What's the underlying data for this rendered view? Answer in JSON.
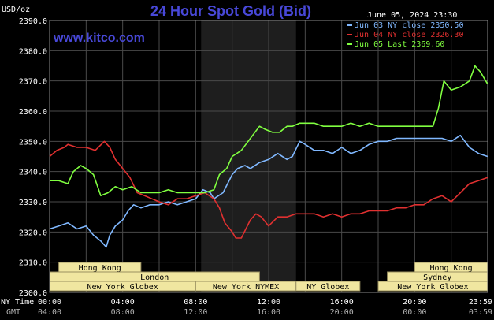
{
  "header": {
    "units": "USD/oz",
    "title": "24 Hour Spot Gold (Bid)",
    "datetime": "June 05, 2024 23:30",
    "url": "www.kitco.com"
  },
  "colors": {
    "background": "#000000",
    "grid": "#4a4a4a",
    "title": "#4848d8",
    "url": "#4848d8",
    "nymex_shade": "#1e1e1e",
    "session_fill": "#f0e6a0",
    "session_stroke": "#9a9060",
    "axis_text": "#ffffff",
    "gmt_text": "#b0b0b0"
  },
  "legend": [
    {
      "label": "Jun 03 NY close 2350.50",
      "color": "#80b8ff"
    },
    {
      "label": "Jun 04 NY close 2326.30",
      "color": "#e03030"
    },
    {
      "label": "Jun 05 Last 2369.60",
      "color": "#80ff40"
    }
  ],
  "bottom_axis": {
    "ny_label": "NY Time",
    "gmt_label": "GMT",
    "ny_ticks": [
      "00:00",
      "04:00",
      "08:00",
      "12:00",
      "16:00",
      "20:00",
      "23:59"
    ],
    "gmt_ticks": [
      "04:00",
      "08:00",
      "12:00",
      "16:00",
      "20:00",
      "00:00",
      "03:59"
    ]
  },
  "sessions": [
    {
      "label": "Hong Kong",
      "row": 0,
      "start": 0.5,
      "end": 5.0
    },
    {
      "label": "Hong Kong",
      "row": 0,
      "start": 20.0,
      "end": 23.99
    },
    {
      "label": "London",
      "row": 1,
      "start": 0.0,
      "end": 11.5
    },
    {
      "label": "Sydney",
      "row": 1,
      "start": 18.5,
      "end": 23.99
    },
    {
      "label": "New York Globex",
      "row": 2,
      "start": 0.0,
      "end": 8.0
    },
    {
      "label": "New York NYMEX",
      "row": 2,
      "start": 8.0,
      "end": 13.5
    },
    {
      "label": "NY Globex",
      "row": 2,
      "start": 13.5,
      "end": 17.0
    },
    {
      "label": "New York Globex",
      "row": 2,
      "start": 18.0,
      "end": 23.99
    }
  ],
  "chart_data": {
    "type": "line",
    "xlim": [
      0,
      24
    ],
    "ylim": [
      2300,
      2390
    ],
    "yticks": [
      2300.0,
      2310.0,
      2320.0,
      2330.0,
      2340.0,
      2350.0,
      2360.0,
      2370.0,
      2380.0,
      2390.0
    ],
    "yticklabels": [
      "2300.0",
      "2310.0",
      "2320.0",
      "2330.0",
      "2340.0",
      "2350.0",
      "2360.0",
      "2370.0",
      "2380.0",
      "2390.0"
    ],
    "shaded_region": [
      8.3,
      13.5
    ],
    "grid": true,
    "series": [
      {
        "name": "Jun 03 NY close 2350.50",
        "color": "#80b8ff",
        "x": [
          0,
          0.5,
          1,
          1.5,
          2,
          2.4,
          2.8,
          3.1,
          3.3,
          3.6,
          4,
          4.3,
          4.6,
          5,
          5.5,
          6,
          6.5,
          7,
          7.5,
          8,
          8.4,
          8.8,
          9,
          9.5,
          10,
          10.3,
          10.7,
          11,
          11.5,
          12,
          12.5,
          13,
          13.3,
          13.7,
          14,
          14.5,
          15,
          15.5,
          16,
          16.5,
          17,
          17.5,
          18,
          18.5,
          19,
          19.5,
          20,
          20.5,
          21,
          21.5,
          22,
          22.5,
          23,
          23.5,
          23.99
        ],
        "values": [
          2321,
          2322,
          2323,
          2321,
          2322,
          2319,
          2317,
          2315,
          2319,
          2322,
          2324,
          2327,
          2329,
          2328,
          2329,
          2329,
          2330,
          2329,
          2330,
          2331,
          2334,
          2333,
          2331,
          2333,
          2339,
          2341,
          2342,
          2341,
          2343,
          2344,
          2346,
          2344,
          2345,
          2350,
          2349,
          2347,
          2347,
          2346,
          2348,
          2346,
          2347,
          2349,
          2350,
          2350,
          2351,
          2351,
          2351,
          2351,
          2351,
          2351,
          2350,
          2352,
          2348,
          2346,
          2345
        ]
      },
      {
        "name": "Jun 04 NY close 2326.30",
        "color": "#e03030",
        "x": [
          0,
          0.4,
          0.8,
          1,
          1.5,
          2,
          2.5,
          3,
          3.3,
          3.6,
          4,
          4.4,
          4.8,
          5.2,
          5.6,
          6,
          6.5,
          7,
          7.5,
          8,
          8.5,
          9,
          9.3,
          9.6,
          10,
          10.2,
          10.5,
          11,
          11.3,
          11.6,
          12,
          12.5,
          13,
          13.5,
          14,
          14.5,
          15,
          15.5,
          16,
          16.5,
          17,
          17.5,
          18,
          18.5,
          19,
          19.5,
          20,
          20.5,
          21,
          21.5,
          22,
          22.5,
          23,
          23.5,
          23.99
        ],
        "values": [
          2345,
          2347,
          2348,
          2349,
          2348,
          2348,
          2347,
          2350,
          2348,
          2344,
          2341,
          2338,
          2333,
          2332,
          2331,
          2330,
          2329,
          2331,
          2331,
          2332,
          2333,
          2331,
          2328,
          2323,
          2320,
          2318,
          2318,
          2324,
          2326,
          2325,
          2322,
          2325,
          2325,
          2326,
          2326,
          2326,
          2325,
          2326,
          2325,
          2326,
          2326,
          2327,
          2327,
          2327,
          2328,
          2328,
          2329,
          2329,
          2331,
          2332,
          2330,
          2333,
          2336,
          2337,
          2338
        ]
      },
      {
        "name": "Jun 05 Last 2369.60",
        "color": "#80ff40",
        "x": [
          0,
          0.5,
          1,
          1.3,
          1.7,
          2,
          2.4,
          2.8,
          3.2,
          3.6,
          4,
          4.5,
          5,
          5.5,
          6,
          6.5,
          7,
          7.5,
          8,
          8.5,
          9,
          9.3,
          9.7,
          10,
          10.5,
          11,
          11.5,
          11.8,
          12.2,
          12.6,
          13,
          13.3,
          13.7,
          14,
          14.5,
          15,
          15.5,
          16,
          16.5,
          17,
          17.5,
          18,
          18.5,
          19,
          19.5,
          20,
          20.5,
          21,
          21.3,
          21.6,
          22,
          22.5,
          23,
          23.3,
          23.6,
          23.99
        ],
        "values": [
          2337,
          2337,
          2336,
          2340,
          2342,
          2341,
          2339,
          2332,
          2333,
          2335,
          2334,
          2335,
          2333,
          2333,
          2333,
          2334,
          2333,
          2333,
          2333,
          2333,
          2334,
          2339,
          2341,
          2345,
          2347,
          2351,
          2355,
          2354,
          2353,
          2353,
          2355,
          2355,
          2356,
          2356,
          2356,
          2355,
          2355,
          2355,
          2356,
          2355,
          2356,
          2355,
          2355,
          2355,
          2355,
          2355,
          2355,
          2355,
          2361,
          2370,
          2367,
          2368,
          2370,
          2375,
          2373,
          2369
        ]
      }
    ]
  }
}
